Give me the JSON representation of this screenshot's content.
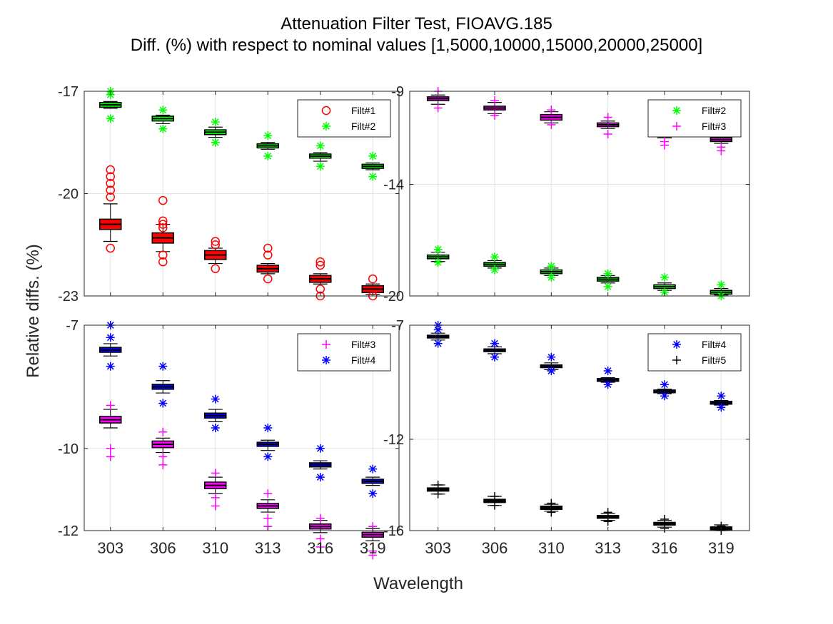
{
  "title": "Attenuation Filter Test, FIOAVG.185",
  "subtitle": "Diff. (%) with respect to nominal values [1,5000,10000,15000,20000,25000]",
  "xlabel": "Wavelength",
  "ylabel": "Relative diffs. (%)",
  "colors": {
    "Filt#1": "#ff0000",
    "Filt#2": "#00ff00",
    "Filt#3": "#ff00ff",
    "Filt#4": "#0000ff",
    "Filt#5": "#000000"
  },
  "chart_data": [
    {
      "type": "box",
      "panel": "top-left",
      "categories": [
        "303",
        "306",
        "310",
        "313",
        "316",
        "319"
      ],
      "ylim": [
        -23,
        -17
      ],
      "yticks": [
        -17,
        -20,
        -23
      ],
      "grid": true,
      "legend_placement": "top-right",
      "series": [
        {
          "name": "Filt#1",
          "marker": "circle",
          "color": "#ff0000",
          "median": [
            -20.9,
            -21.3,
            -21.8,
            -22.2,
            -22.5,
            -22.8
          ],
          "q1": [
            -21.05,
            -21.45,
            -21.93,
            -22.3,
            -22.6,
            -22.9
          ],
          "q3": [
            -20.75,
            -21.15,
            -21.67,
            -22.1,
            -22.4,
            -22.7
          ],
          "whisker_low": [
            -21.4,
            -21.7,
            -22.05,
            -22.35,
            -22.65,
            -22.95
          ],
          "whisker_high": [
            -20.3,
            -20.9,
            -21.6,
            -22.05,
            -22.35,
            -22.65
          ],
          "outliers": [
            [
              -19.3,
              -19.5,
              -19.7,
              -19.9,
              -20.1,
              -21.6
            ],
            [
              -20.2,
              -20.8,
              -20.9,
              -21.0,
              -21.8,
              -22.0
            ],
            [
              -21.4,
              -21.5,
              -22.2
            ],
            [
              -21.6,
              -21.8,
              -22.5
            ],
            [
              -22.0,
              -22.1,
              -22.8,
              -23.0
            ],
            [
              -22.5,
              -23.0
            ]
          ]
        },
        {
          "name": "Filt#2",
          "marker": "star",
          "color": "#00ff00",
          "median": [
            -17.4,
            -17.8,
            -18.2,
            -18.6,
            -18.9,
            -19.2
          ],
          "q1": [
            -17.47,
            -17.87,
            -18.27,
            -18.66,
            -18.96,
            -19.26
          ],
          "q3": [
            -17.33,
            -17.73,
            -18.13,
            -18.54,
            -18.84,
            -19.14
          ],
          "whisker_low": [
            -17.5,
            -17.95,
            -18.35,
            -18.7,
            -19.05,
            -19.3
          ],
          "whisker_high": [
            -17.3,
            -17.7,
            -18.05,
            -18.5,
            -18.8,
            -19.1
          ],
          "outliers": [
            [
              -17.0,
              -17.1,
              -17.8
            ],
            [
              -17.55,
              -18.1
            ],
            [
              -17.9,
              -18.5
            ],
            [
              -18.3,
              -18.9
            ],
            [
              -18.6,
              -19.2
            ],
            [
              -18.9,
              -19.5
            ]
          ]
        }
      ]
    },
    {
      "type": "box",
      "panel": "top-right",
      "categories": [
        "303",
        "306",
        "310",
        "313",
        "316",
        "319"
      ],
      "ylim": [
        -20,
        -9
      ],
      "yticks": [
        -9,
        -14,
        -20
      ],
      "grid": true,
      "legend_placement": "top-right",
      "series": [
        {
          "name": "Filt#2",
          "marker": "star",
          "color": "#00ff00",
          "median": [
            -17.9,
            -18.3,
            -18.7,
            -19.1,
            -19.5,
            -19.8
          ],
          "q1": [
            -18.0,
            -18.4,
            -18.8,
            -19.2,
            -19.6,
            -19.9
          ],
          "q3": [
            -17.8,
            -18.2,
            -18.6,
            -19.0,
            -19.4,
            -19.7
          ],
          "whisker_low": [
            -18.15,
            -18.5,
            -18.9,
            -19.3,
            -19.7,
            -19.95
          ],
          "whisker_high": [
            -17.65,
            -18.1,
            -18.5,
            -18.9,
            -19.3,
            -19.6
          ],
          "outliers": [
            [
              -17.5,
              -18.2
            ],
            [
              -17.9,
              -18.6
            ],
            [
              -18.4,
              -19.0
            ],
            [
              -18.8,
              -19.5
            ],
            [
              -19.0,
              -19.8
            ],
            [
              -19.4,
              -20.0
            ]
          ]
        },
        {
          "name": "Filt#3",
          "marker": "plus",
          "color": "#ff00ff",
          "median": [
            -9.4,
            -9.9,
            -10.4,
            -10.8,
            -11.3,
            -11.6
          ],
          "q1": [
            -9.5,
            -10.0,
            -10.55,
            -10.9,
            -11.4,
            -11.7
          ],
          "q3": [
            -9.3,
            -9.8,
            -10.25,
            -10.7,
            -11.2,
            -11.5
          ],
          "whisker_low": [
            -9.7,
            -10.2,
            -10.7,
            -11.0,
            -11.5,
            -11.8
          ],
          "whisker_high": [
            -9.2,
            -9.6,
            -10.1,
            -10.6,
            -11.0,
            -11.3
          ],
          "outliers": [
            [
              -9.0,
              -9.9
            ],
            [
              -9.5,
              -10.3
            ],
            [
              -10.0,
              -10.8
            ],
            [
              -10.4,
              -11.3
            ],
            [
              -11.7,
              -11.9
            ],
            [
              -12.0,
              -12.2
            ]
          ]
        }
      ]
    },
    {
      "type": "box",
      "panel": "bottom-left",
      "categories": [
        "303",
        "306",
        "310",
        "313",
        "316",
        "319"
      ],
      "ylim": [
        -12,
        -7
      ],
      "yticks": [
        -7,
        -10,
        -12
      ],
      "grid": true,
      "legend_placement": "top-right",
      "series": [
        {
          "name": "Filt#3",
          "marker": "plus",
          "color": "#ff00ff",
          "median": [
            -9.3,
            -9.9,
            -10.9,
            -11.4,
            -11.9,
            -12.1
          ],
          "q1": [
            -9.38,
            -9.98,
            -10.98,
            -11.46,
            -11.96,
            -12.16
          ],
          "q3": [
            -9.22,
            -9.82,
            -10.82,
            -11.34,
            -11.84,
            -12.04
          ],
          "whisker_low": [
            -9.5,
            -10.1,
            -11.1,
            -11.55,
            -12.05,
            -12.25
          ],
          "whisker_high": [
            -9.05,
            -9.75,
            -10.7,
            -11.25,
            -11.75,
            -11.95
          ],
          "outliers": [
            [
              -8.95,
              -10.0,
              -10.2
            ],
            [
              -9.6,
              -10.2,
              -10.4
            ],
            [
              -10.6,
              -11.2,
              -11.4
            ],
            [
              -11.1,
              -11.7,
              -11.9
            ],
            [
              -11.7,
              -12.2,
              -12.4
            ],
            [
              -11.9,
              -12.5,
              -12.6
            ]
          ]
        },
        {
          "name": "Filt#4",
          "marker": "star",
          "color": "#0000ff",
          "median": [
            -7.6,
            -8.5,
            -9.2,
            -9.9,
            -10.4,
            -10.8
          ],
          "q1": [
            -7.66,
            -8.56,
            -9.26,
            -9.95,
            -10.45,
            -10.85
          ],
          "q3": [
            -7.54,
            -8.44,
            -9.14,
            -9.85,
            -10.35,
            -10.75
          ],
          "whisker_low": [
            -7.75,
            -8.65,
            -9.35,
            -10.05,
            -10.5,
            -10.9
          ],
          "whisker_high": [
            -7.45,
            -8.35,
            -9.05,
            -9.8,
            -10.3,
            -10.7
          ],
          "outliers": [
            [
              -7.0,
              -7.3,
              -8.0
            ],
            [
              -8.0,
              -8.9
            ],
            [
              -8.8,
              -9.5
            ],
            [
              -9.5,
              -10.2
            ],
            [
              -10.0,
              -10.7
            ],
            [
              -10.5,
              -11.1
            ]
          ]
        }
      ]
    },
    {
      "type": "box",
      "panel": "bottom-right",
      "categories": [
        "303",
        "306",
        "310",
        "313",
        "316",
        "319"
      ],
      "ylim": [
        -16,
        -7
      ],
      "yticks": [
        -7,
        -12,
        -16
      ],
      "grid": true,
      "legend_placement": "top-right",
      "series": [
        {
          "name": "Filt#4",
          "marker": "star",
          "color": "#0000ff",
          "median": [
            -7.5,
            -8.1,
            -8.8,
            -9.4,
            -9.9,
            -10.4
          ],
          "q1": [
            -7.56,
            -8.16,
            -8.86,
            -9.46,
            -9.96,
            -10.46
          ],
          "q3": [
            -7.44,
            -8.04,
            -8.74,
            -9.34,
            -9.84,
            -10.34
          ],
          "whisker_low": [
            -7.65,
            -8.25,
            -8.95,
            -9.5,
            -10.0,
            -10.5
          ],
          "whisker_high": [
            -7.35,
            -7.95,
            -8.65,
            -9.3,
            -9.8,
            -10.3
          ],
          "outliers": [
            [
              -7.0,
              -7.2,
              -7.8
            ],
            [
              -7.8,
              -8.4
            ],
            [
              -8.4,
              -9.0
            ],
            [
              -9.0,
              -9.6
            ],
            [
              -9.6,
              -10.1
            ],
            [
              -10.1,
              -10.6
            ]
          ]
        },
        {
          "name": "Filt#5",
          "marker": "plus",
          "color": "#000000",
          "median": [
            -14.2,
            -14.7,
            -15.0,
            -15.4,
            -15.7,
            -15.9
          ],
          "q1": [
            -14.27,
            -14.77,
            -15.07,
            -15.46,
            -15.76,
            -15.96
          ],
          "q3": [
            -14.13,
            -14.63,
            -14.93,
            -15.34,
            -15.64,
            -15.84
          ],
          "whisker_low": [
            -14.4,
            -14.9,
            -15.15,
            -15.55,
            -15.85,
            -16.0
          ],
          "whisker_high": [
            -14.0,
            -14.5,
            -14.85,
            -15.25,
            -15.55,
            -15.75
          ],
          "outliers": [
            [
              -14.0,
              -14.4
            ],
            [
              -14.5,
              -14.9
            ],
            [
              -14.8,
              -15.2
            ],
            [
              -15.2,
              -15.6
            ],
            [
              -15.5,
              -15.9
            ],
            [
              -15.8,
              -16.0
            ]
          ]
        }
      ]
    }
  ]
}
